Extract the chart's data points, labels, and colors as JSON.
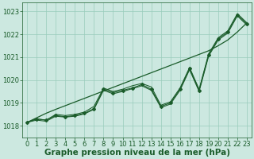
{
  "x": [
    0,
    1,
    2,
    3,
    4,
    5,
    6,
    7,
    8,
    9,
    10,
    11,
    12,
    13,
    14,
    15,
    16,
    17,
    18,
    19,
    20,
    21,
    22,
    23
  ],
  "line_markers": [
    1018.15,
    1018.3,
    1018.25,
    1018.45,
    1018.4,
    1018.45,
    1018.55,
    1018.75,
    1019.6,
    1019.45,
    1019.55,
    1019.65,
    1019.8,
    1019.6,
    1018.85,
    1019.0,
    1019.6,
    1020.5,
    1019.55,
    1021.1,
    1021.8,
    1022.1,
    1022.85,
    1022.45
  ],
  "line_smooth1": [
    1018.15,
    1018.3,
    1018.25,
    1018.5,
    1018.45,
    1018.5,
    1018.6,
    1018.85,
    1019.65,
    1019.5,
    1019.6,
    1019.75,
    1019.85,
    1019.7,
    1018.9,
    1019.05,
    1019.65,
    1020.55,
    1019.6,
    1021.15,
    1021.85,
    1022.15,
    1022.9,
    1022.5
  ],
  "line_smooth2": [
    1018.15,
    1018.25,
    1018.2,
    1018.42,
    1018.38,
    1018.42,
    1018.52,
    1018.72,
    1019.55,
    1019.4,
    1019.5,
    1019.62,
    1019.75,
    1019.55,
    1018.8,
    1018.95,
    1019.55,
    1020.45,
    1019.5,
    1021.05,
    1021.75,
    1022.05,
    1022.8,
    1022.4
  ],
  "trend": [
    1018.15,
    1018.35,
    1018.55,
    1018.72,
    1018.88,
    1019.04,
    1019.2,
    1019.36,
    1019.52,
    1019.68,
    1019.84,
    1020.0,
    1020.16,
    1020.32,
    1020.48,
    1020.64,
    1020.8,
    1020.96,
    1021.12,
    1021.28,
    1021.5,
    1021.75,
    1022.1,
    1022.5
  ],
  "bg_color": "#cce8e0",
  "grid_color": "#99ccbb",
  "line_color": "#1a5c2a",
  "ylabel_vals": [
    1018,
    1019,
    1020,
    1021,
    1022,
    1023
  ],
  "ylim": [
    1017.5,
    1023.4
  ],
  "xlim": [
    -0.5,
    23.5
  ],
  "xlabel": "Graphe pression niveau de la mer (hPa)",
  "xlabel_fontsize": 7.5,
  "tick_fontsize": 6.0
}
